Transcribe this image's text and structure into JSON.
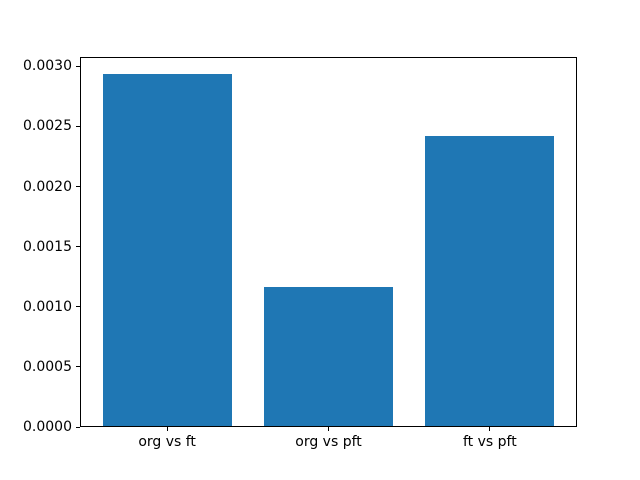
{
  "figure": {
    "background": "#ffffff"
  },
  "chart_data": {
    "type": "bar",
    "categories": [
      "org vs ft",
      "org vs pft",
      "ft vs pft"
    ],
    "values": [
      0.00293,
      0.00116,
      0.00241
    ],
    "title": "",
    "xlabel": "",
    "ylabel": "",
    "xlim": [
      -0.54,
      2.54
    ],
    "ylim": [
      0,
      0.003077
    ],
    "yticks": [
      0.0,
      0.0005,
      0.001,
      0.0015,
      0.002,
      0.0025,
      0.003
    ],
    "ytick_decimals": 4,
    "bar_width_fraction": 0.8,
    "bar_color": "#1f77b4",
    "axis_color": "#000000",
    "text_color": "#000000",
    "grid": false,
    "legend": null
  }
}
